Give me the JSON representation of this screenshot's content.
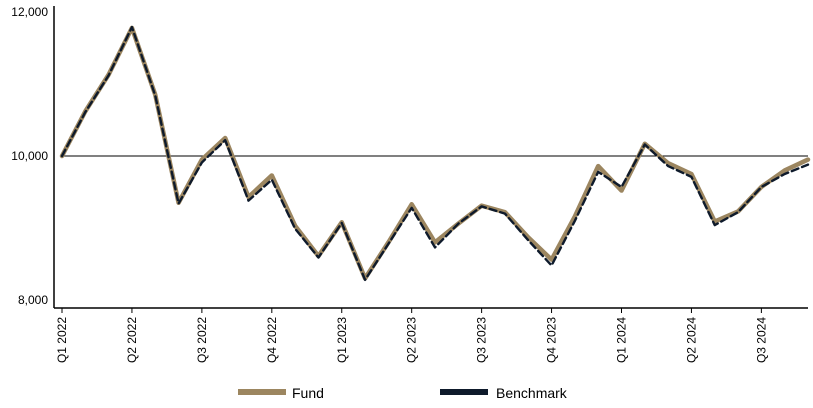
{
  "colors": {
    "fund": "#9c8660",
    "benchmark": "#0e1a2b",
    "axis": "#000000",
    "reference_line": "#000000"
  },
  "chart_data": {
    "type": "line",
    "title": "",
    "xlabel": "",
    "ylabel": "",
    "ylim": [
      8000,
      12000
    ],
    "y_ticks": [
      8000,
      10000,
      12000
    ],
    "y_tick_labels": [
      "8,000",
      "10,000",
      "12,000"
    ],
    "reference_line_y": 10000,
    "x_tick_labels": [
      "Q1 2022",
      "Q2 2022",
      "Q3 2022",
      "Q4 2022",
      "Q1 2023",
      "Q2 2023",
      "Q3 2023",
      "Q4 2023",
      "Q1 2024",
      "Q2 2024",
      "Q3 2024"
    ],
    "x_tick_step": 3,
    "legend_position": "bottom",
    "series": [
      {
        "name": "Fund",
        "values": [
          10000,
          10620,
          11130,
          11780,
          10850,
          9350,
          9950,
          10250,
          9430,
          9730,
          9030,
          8610,
          9080,
          8300,
          8800,
          9330,
          8800,
          9060,
          9310,
          9220,
          8870,
          8560,
          9160,
          9860,
          9520,
          10170,
          9900,
          9750,
          9090,
          9230,
          9570,
          9800,
          9950
        ]
      },
      {
        "name": "Benchmark",
        "values": [
          10000,
          10610,
          11120,
          11790,
          10840,
          9340,
          9910,
          10220,
          9380,
          9670,
          8990,
          8590,
          9070,
          8280,
          8780,
          9280,
          8730,
          9060,
          9300,
          9200,
          8830,
          8480,
          9100,
          9780,
          9570,
          10160,
          9860,
          9710,
          9040,
          9220,
          9570,
          9750,
          9880
        ]
      }
    ]
  }
}
